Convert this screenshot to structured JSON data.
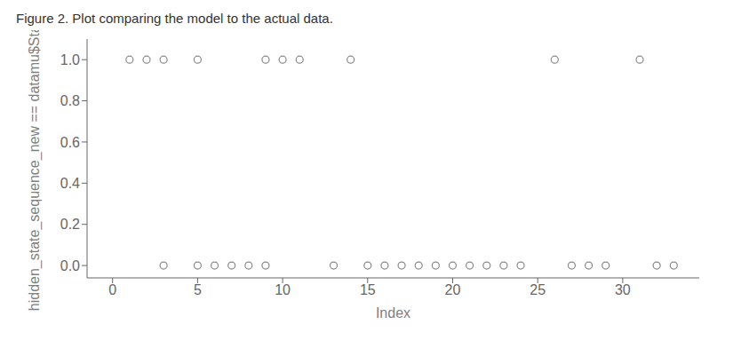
{
  "chart_data": {
    "type": "scatter",
    "title": "Figure 2. Plot comparing the model to the actual data.",
    "xlabel": "Index",
    "ylabel": "hidden_state_sequence_new == datamu$States",
    "series": [
      {
        "color": "#888888",
        "marker": "circle",
        "x": [
          1,
          2,
          3,
          5,
          9,
          10,
          11,
          14,
          26,
          31
        ],
        "values": [
          1,
          1,
          1,
          1,
          1,
          1,
          1,
          1,
          1,
          1
        ]
      },
      {
        "color": "#888888",
        "marker": "circle",
        "x": [
          3,
          5,
          6,
          7,
          8,
          9,
          13,
          15,
          16,
          17,
          18,
          19,
          20,
          21,
          22,
          23,
          24,
          27,
          28,
          29,
          32,
          33
        ],
        "values": [
          0,
          0,
          0,
          0,
          0,
          0,
          0,
          0,
          0,
          0,
          0,
          0,
          0,
          0,
          0,
          0,
          0,
          0,
          0,
          0,
          0,
          0
        ]
      }
    ],
    "xlim": [
      -1.5,
      34.5
    ],
    "xticks": [
      0,
      5,
      10,
      15,
      20,
      25,
      30
    ],
    "ylim": [
      -0.06,
      1.1
    ],
    "yticks": [
      {
        "value": 0.0,
        "label": "0.0"
      },
      0.2,
      0.4,
      0.6,
      0.8,
      {
        "value": 1.0,
        "label": "1.0"
      }
    ],
    "grid": false
  }
}
